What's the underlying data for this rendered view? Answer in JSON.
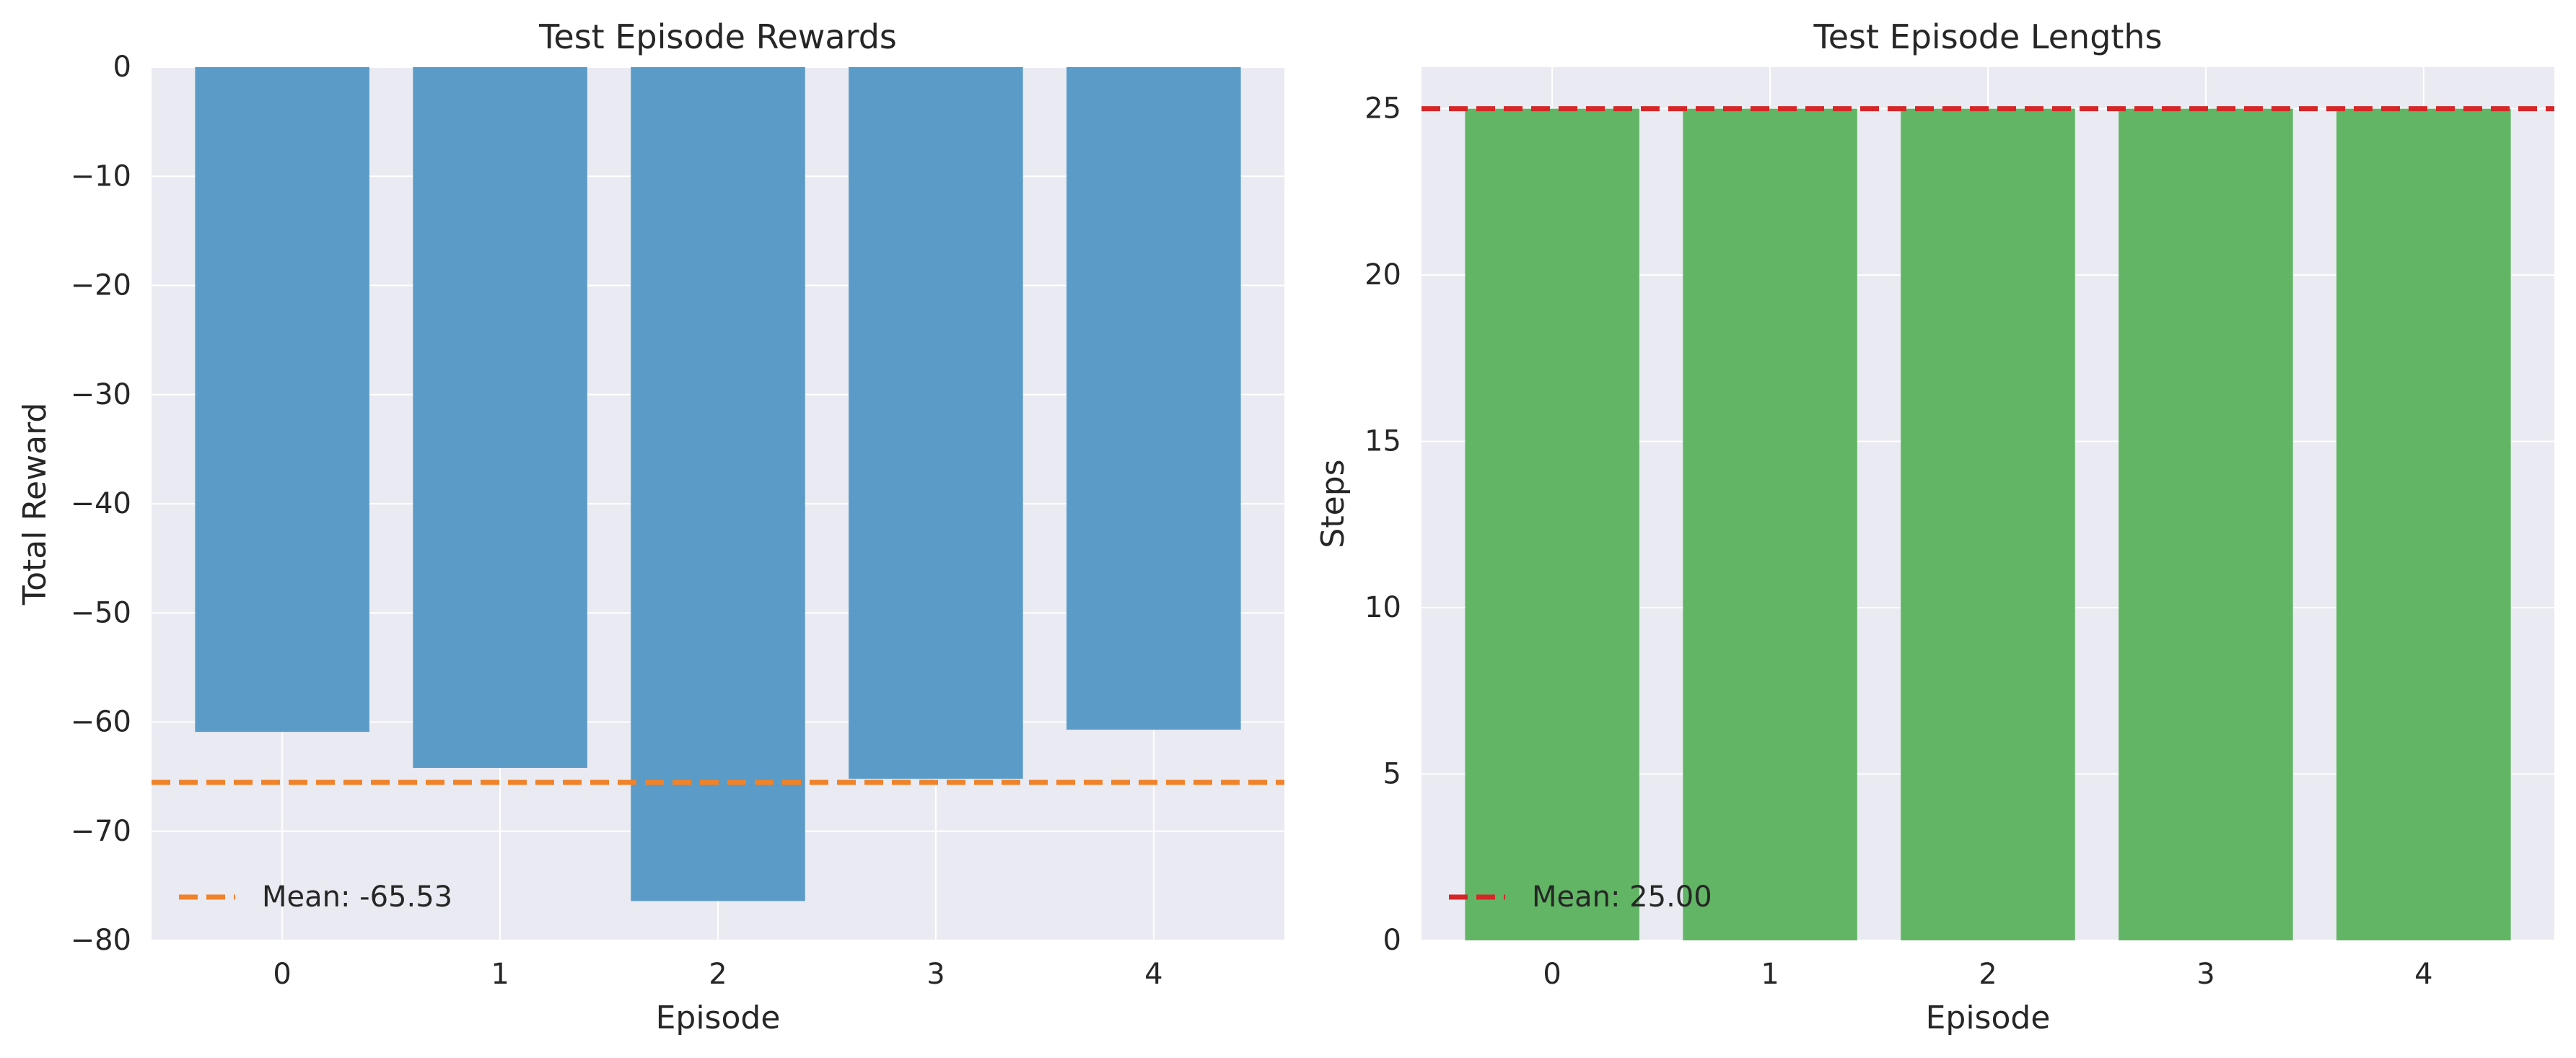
{
  "chart_data": [
    {
      "type": "bar",
      "title": "Test Episode Rewards",
      "xlabel": "Episode",
      "ylabel": "Total Reward",
      "categories": [
        "0",
        "1",
        "2",
        "3",
        "4"
      ],
      "values": [
        -60.9,
        -64.2,
        -76.4,
        -65.2,
        -60.7
      ],
      "ylim": [
        -80,
        0
      ],
      "yticks": [
        0,
        -10,
        -20,
        -30,
        -40,
        -50,
        -60,
        -70,
        -80
      ],
      "ytick_labels": [
        "0",
        "−10",
        "−20",
        "−30",
        "−40",
        "−50",
        "−60",
        "−70",
        "−80"
      ],
      "xlim": [
        -0.6,
        4.6
      ],
      "bar_color": "#5b9bc7",
      "mean": {
        "label": "Mean: -65.53",
        "value": -65.53,
        "color": "#f0822a",
        "style": "dashed"
      },
      "legend": {
        "placement": "lower-left"
      },
      "grid": true
    },
    {
      "type": "bar",
      "title": "Test Episode Lengths",
      "xlabel": "Episode",
      "ylabel": "Steps",
      "categories": [
        "0",
        "1",
        "2",
        "3",
        "4"
      ],
      "values": [
        25,
        25,
        25,
        25,
        25
      ],
      "ylim": [
        0,
        26.25
      ],
      "yticks": [
        0,
        5,
        10,
        15,
        20,
        25
      ],
      "ytick_labels": [
        "0",
        "5",
        "10",
        "15",
        "20",
        "25"
      ],
      "xlim": [
        -0.6,
        4.6
      ],
      "bar_color": "#62b565",
      "mean": {
        "label": "Mean: 25.00",
        "value": 25.0,
        "color": "#d62728",
        "style": "dashed"
      },
      "legend": {
        "placement": "lower-left"
      },
      "grid": true
    }
  ],
  "colors": {
    "plot_background": "#eaeaf2",
    "grid": "#ffffff",
    "text": "#262626"
  }
}
